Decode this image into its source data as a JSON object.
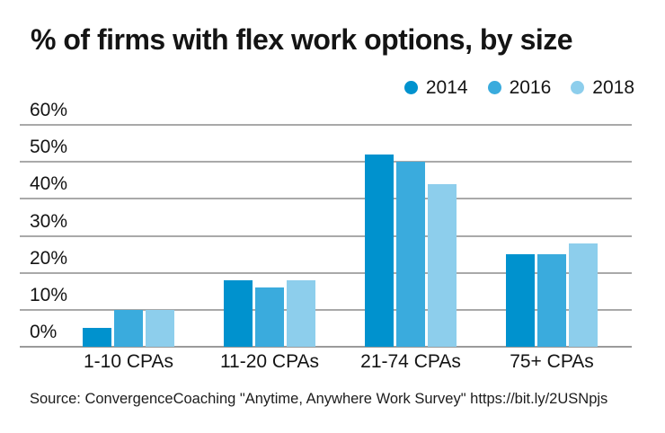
{
  "title": "% of firms with flex work options, by size",
  "source": "Source: ConvergenceCoaching \"Anytime, Anywhere Work Survey\" https://bit.ly/2USNpjs",
  "colors": {
    "series_2014": "#0092ce",
    "series_2016": "#3aabdd",
    "series_2018": "#8dceec",
    "gridline": "#a9a9a9",
    "text": "#141414",
    "background": "#ffffff"
  },
  "legend": {
    "items": [
      {
        "label": "2014",
        "color": "#0092ce"
      },
      {
        "label": "2016",
        "color": "#3aabdd"
      },
      {
        "label": "2018",
        "color": "#8dceec"
      }
    ]
  },
  "chart_data": {
    "type": "bar",
    "title": "% of firms with flex work options, by size",
    "categories": [
      "1-10 CPAs",
      "11-20 CPAs",
      "21-74 CPAs",
      "75+ CPAs"
    ],
    "series": [
      {
        "name": "2014",
        "color": "#0092ce",
        "values": [
          5,
          18,
          52,
          25
        ]
      },
      {
        "name": "2016",
        "color": "#3aabdd",
        "values": [
          10,
          16,
          50,
          25
        ]
      },
      {
        "name": "2018",
        "color": "#8dceec",
        "values": [
          10,
          18,
          44,
          28
        ]
      }
    ],
    "xlabel": "",
    "ylabel": "",
    "ylim": [
      0,
      60
    ],
    "y_tick_step": 10,
    "y_tick_suffix": "%",
    "grid": true,
    "legend_position": "top-right"
  }
}
